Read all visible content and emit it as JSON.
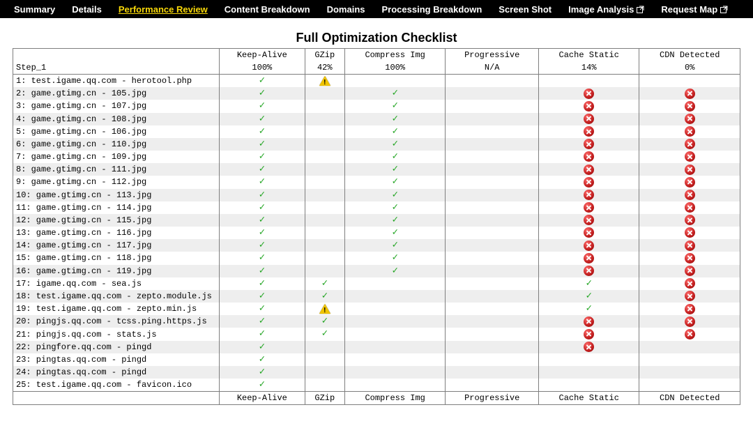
{
  "nav": {
    "items": [
      {
        "label": "Summary",
        "active": false,
        "ext": false
      },
      {
        "label": "Details",
        "active": false,
        "ext": false
      },
      {
        "label": "Performance Review",
        "active": true,
        "ext": false
      },
      {
        "label": "Content Breakdown",
        "active": false,
        "ext": false
      },
      {
        "label": "Domains",
        "active": false,
        "ext": false
      },
      {
        "label": "Processing Breakdown",
        "active": false,
        "ext": false
      },
      {
        "label": "Screen Shot",
        "active": false,
        "ext": false
      },
      {
        "label": "Image Analysis",
        "active": false,
        "ext": true
      },
      {
        "label": "Request Map",
        "active": false,
        "ext": true
      }
    ],
    "active_color": "#f7d708",
    "bg_color": "#000000",
    "text_color": "#ffffff"
  },
  "title": "Full Optimization Checklist",
  "table": {
    "step_header": "Step_1",
    "columns": [
      {
        "key": "keep_alive",
        "label": "Keep-Alive",
        "score": "100%"
      },
      {
        "key": "gzip",
        "label": "GZip",
        "score": "42%"
      },
      {
        "key": "compress_img",
        "label": "Compress Img",
        "score": "100%"
      },
      {
        "key": "progressive",
        "label": "Progressive",
        "score": "N/A"
      },
      {
        "key": "cache_static",
        "label": "Cache Static",
        "score": "14%"
      },
      {
        "key": "cdn",
        "label": "CDN Detected",
        "score": "0%"
      }
    ],
    "rows": [
      {
        "n": 1,
        "label": "test.igame.qq.com - herotool.php",
        "keep_alive": "pass",
        "gzip": "warn",
        "compress_img": "",
        "progressive": "",
        "cache_static": "",
        "cdn": ""
      },
      {
        "n": 2,
        "label": "game.gtimg.cn - 105.jpg",
        "keep_alive": "pass",
        "gzip": "",
        "compress_img": "pass",
        "progressive": "",
        "cache_static": "fail",
        "cdn": "fail"
      },
      {
        "n": 3,
        "label": "game.gtimg.cn - 107.jpg",
        "keep_alive": "pass",
        "gzip": "",
        "compress_img": "pass",
        "progressive": "",
        "cache_static": "fail",
        "cdn": "fail"
      },
      {
        "n": 4,
        "label": "game.gtimg.cn - 108.jpg",
        "keep_alive": "pass",
        "gzip": "",
        "compress_img": "pass",
        "progressive": "",
        "cache_static": "fail",
        "cdn": "fail"
      },
      {
        "n": 5,
        "label": "game.gtimg.cn - 106.jpg",
        "keep_alive": "pass",
        "gzip": "",
        "compress_img": "pass",
        "progressive": "",
        "cache_static": "fail",
        "cdn": "fail"
      },
      {
        "n": 6,
        "label": "game.gtimg.cn - 110.jpg",
        "keep_alive": "pass",
        "gzip": "",
        "compress_img": "pass",
        "progressive": "",
        "cache_static": "fail",
        "cdn": "fail"
      },
      {
        "n": 7,
        "label": "game.gtimg.cn - 109.jpg",
        "keep_alive": "pass",
        "gzip": "",
        "compress_img": "pass",
        "progressive": "",
        "cache_static": "fail",
        "cdn": "fail"
      },
      {
        "n": 8,
        "label": "game.gtimg.cn - 111.jpg",
        "keep_alive": "pass",
        "gzip": "",
        "compress_img": "pass",
        "progressive": "",
        "cache_static": "fail",
        "cdn": "fail"
      },
      {
        "n": 9,
        "label": "game.gtimg.cn - 112.jpg",
        "keep_alive": "pass",
        "gzip": "",
        "compress_img": "pass",
        "progressive": "",
        "cache_static": "fail",
        "cdn": "fail"
      },
      {
        "n": 10,
        "label": "game.gtimg.cn - 113.jpg",
        "keep_alive": "pass",
        "gzip": "",
        "compress_img": "pass",
        "progressive": "",
        "cache_static": "fail",
        "cdn": "fail"
      },
      {
        "n": 11,
        "label": "game.gtimg.cn - 114.jpg",
        "keep_alive": "pass",
        "gzip": "",
        "compress_img": "pass",
        "progressive": "",
        "cache_static": "fail",
        "cdn": "fail"
      },
      {
        "n": 12,
        "label": "game.gtimg.cn - 115.jpg",
        "keep_alive": "pass",
        "gzip": "",
        "compress_img": "pass",
        "progressive": "",
        "cache_static": "fail",
        "cdn": "fail"
      },
      {
        "n": 13,
        "label": "game.gtimg.cn - 116.jpg",
        "keep_alive": "pass",
        "gzip": "",
        "compress_img": "pass",
        "progressive": "",
        "cache_static": "fail",
        "cdn": "fail"
      },
      {
        "n": 14,
        "label": "game.gtimg.cn - 117.jpg",
        "keep_alive": "pass",
        "gzip": "",
        "compress_img": "pass",
        "progressive": "",
        "cache_static": "fail",
        "cdn": "fail"
      },
      {
        "n": 15,
        "label": "game.gtimg.cn - 118.jpg",
        "keep_alive": "pass",
        "gzip": "",
        "compress_img": "pass",
        "progressive": "",
        "cache_static": "fail",
        "cdn": "fail"
      },
      {
        "n": 16,
        "label": "game.gtimg.cn - 119.jpg",
        "keep_alive": "pass",
        "gzip": "",
        "compress_img": "pass",
        "progressive": "",
        "cache_static": "fail",
        "cdn": "fail"
      },
      {
        "n": 17,
        "label": "igame.qq.com - sea.js",
        "keep_alive": "pass",
        "gzip": "pass",
        "compress_img": "",
        "progressive": "",
        "cache_static": "pass",
        "cdn": "fail"
      },
      {
        "n": 18,
        "label": "test.igame.qq.com - zepto.module.js",
        "keep_alive": "pass",
        "gzip": "pass",
        "compress_img": "",
        "progressive": "",
        "cache_static": "pass",
        "cdn": "fail"
      },
      {
        "n": 19,
        "label": "test.igame.qq.com - zepto.min.js",
        "keep_alive": "pass",
        "gzip": "warn",
        "compress_img": "",
        "progressive": "",
        "cache_static": "pass",
        "cdn": "fail"
      },
      {
        "n": 20,
        "label": "pingjs.qq.com - tcss.ping.https.js",
        "keep_alive": "pass",
        "gzip": "pass",
        "compress_img": "",
        "progressive": "",
        "cache_static": "fail",
        "cdn": "fail"
      },
      {
        "n": 21,
        "label": "pingjs.qq.com - stats.js",
        "keep_alive": "pass",
        "gzip": "pass",
        "compress_img": "",
        "progressive": "",
        "cache_static": "fail",
        "cdn": "fail"
      },
      {
        "n": 22,
        "label": "pingfore.qq.com - pingd",
        "keep_alive": "pass",
        "gzip": "",
        "compress_img": "",
        "progressive": "",
        "cache_static": "fail",
        "cdn": ""
      },
      {
        "n": 23,
        "label": "pingtas.qq.com - pingd",
        "keep_alive": "pass",
        "gzip": "",
        "compress_img": "",
        "progressive": "",
        "cache_static": "",
        "cdn": ""
      },
      {
        "n": 24,
        "label": "pingtas.qq.com - pingd",
        "keep_alive": "pass",
        "gzip": "",
        "compress_img": "",
        "progressive": "",
        "cache_static": "",
        "cdn": ""
      },
      {
        "n": 25,
        "label": "test.igame.qq.com - favicon.ico",
        "keep_alive": "pass",
        "gzip": "",
        "compress_img": "",
        "progressive": "",
        "cache_static": "",
        "cdn": ""
      }
    ],
    "row_colors": {
      "even": "#eeeeee",
      "odd": "#ffffff"
    },
    "status_styles": {
      "pass": {
        "type": "check",
        "color": "#22a522"
      },
      "warn": {
        "type": "triangle",
        "fill": "#f0c400",
        "glyph": "!"
      },
      "fail": {
        "type": "x-circle",
        "fill": "#c11d1d",
        "glyph": "×",
        "glyph_color": "#ffffff"
      }
    },
    "border_color": "#7e7e7e",
    "font_family": "Courier New"
  }
}
